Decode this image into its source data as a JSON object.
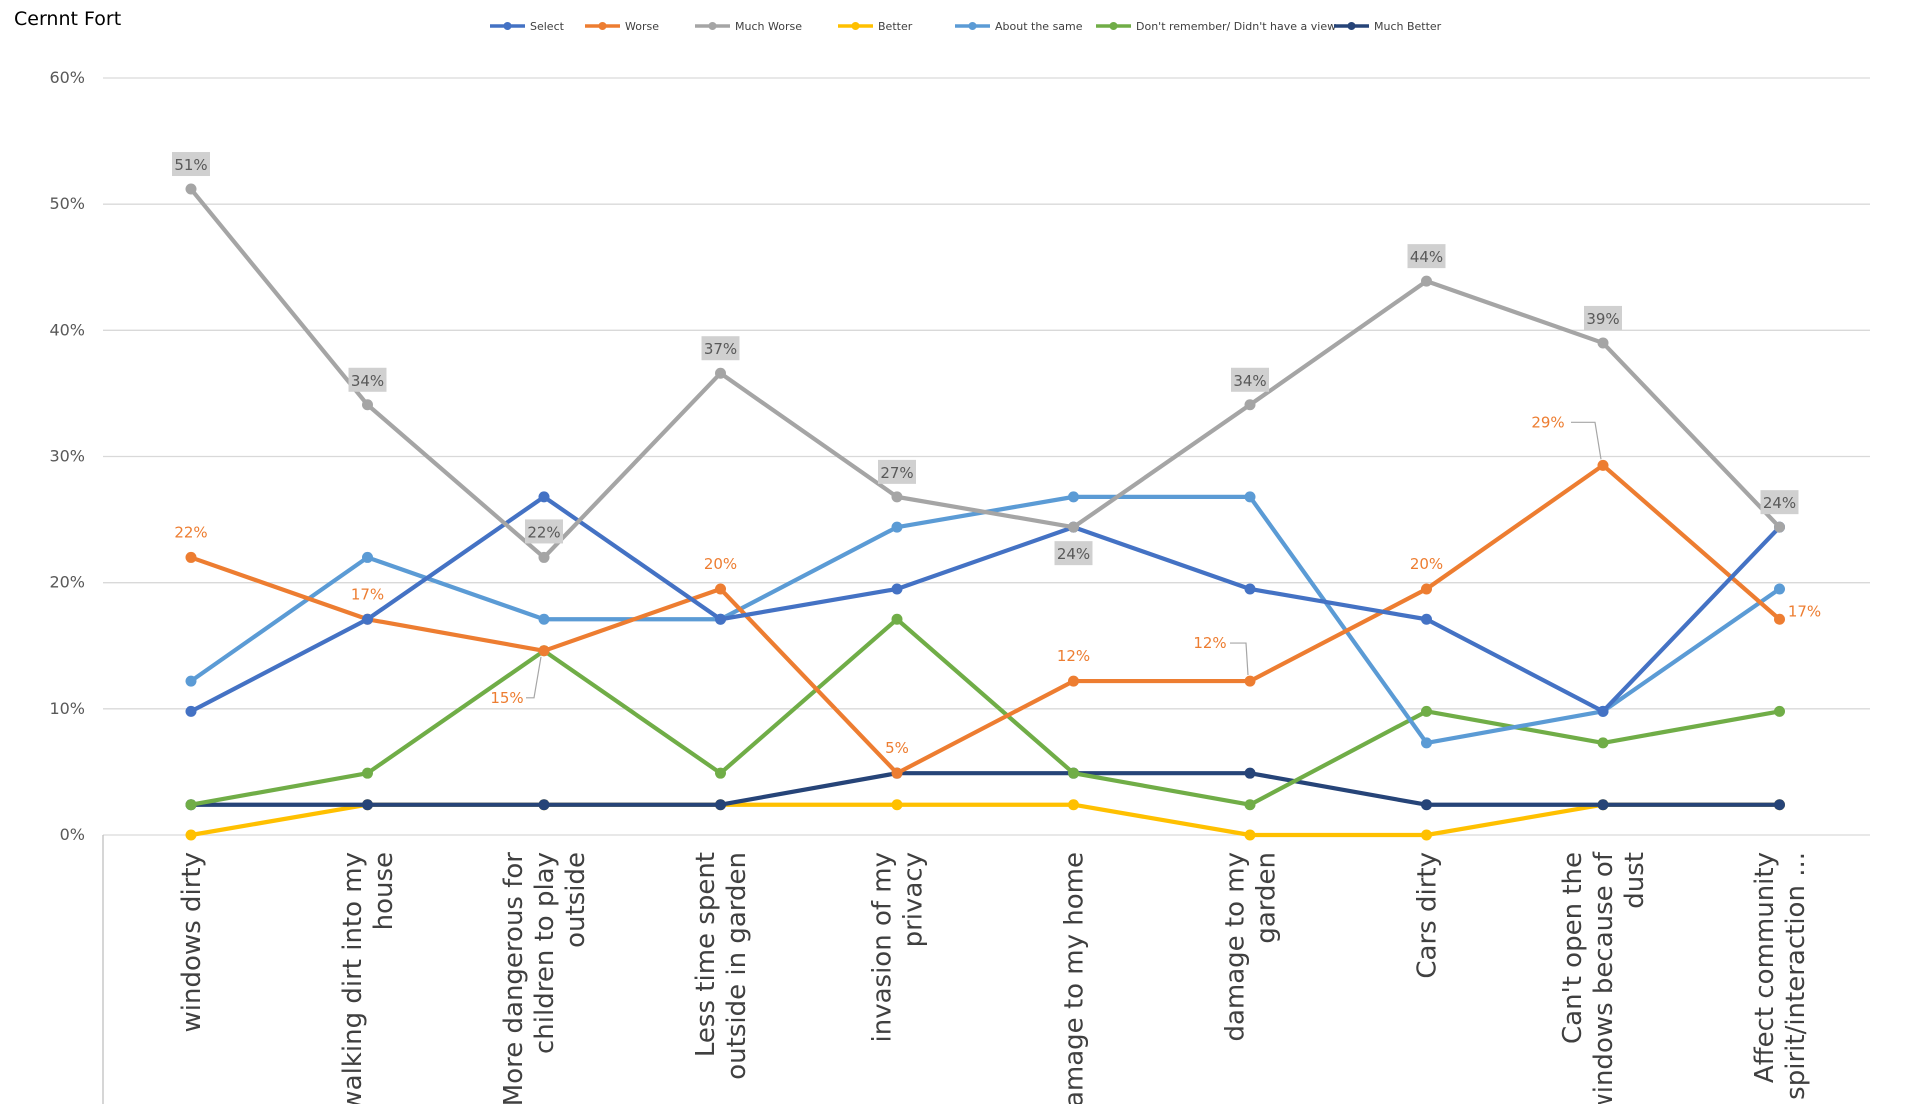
{
  "chart_data": {
    "type": "line",
    "title": "Cernnt Fort",
    "xlabel": "",
    "ylabel": "",
    "ylim": [
      0,
      60
    ],
    "y_ticks": [
      "0%",
      "10%",
      "20%",
      "30%",
      "40%",
      "50%",
      "60%"
    ],
    "y_tick_values": [
      0,
      10,
      20,
      30,
      40,
      50,
      60
    ],
    "grid": true,
    "legend_position": "top-center",
    "categories": [
      [
        "windows  dirty"
      ],
      [
        "walking dirt  into my",
        "house"
      ],
      [
        "More dangerous for",
        "children to play",
        "outside"
      ],
      [
        "Less time spent",
        "outside in garden"
      ],
      [
        "invasion of my",
        "privacy"
      ],
      [
        "damage to my home"
      ],
      [
        "damage to my",
        "garden"
      ],
      [
        "Cars dirty"
      ],
      [
        "Can't open the",
        "windows because of",
        "dust"
      ],
      [
        "Affect community",
        "spirit/interaction ..."
      ]
    ],
    "series": [
      {
        "name": "Select",
        "color": "#4472C4",
        "values": [
          9.8,
          17.1,
          26.8,
          17.1,
          19.5,
          24.4,
          19.5,
          17.1,
          9.8,
          24.4
        ],
        "labels": []
      },
      {
        "name": "Worse",
        "color": "#ED7D31",
        "values": [
          22.0,
          17.1,
          14.6,
          19.5,
          4.9,
          12.2,
          12.2,
          19.5,
          29.3,
          17.1
        ],
        "labels": [
          "22%",
          "17%",
          "15%",
          "20%",
          "5%",
          "12%",
          "12%",
          "20%",
          "29%",
          "17%"
        ]
      },
      {
        "name": "Much Worse",
        "color": "#A5A5A5",
        "values": [
          51.2,
          34.1,
          22.0,
          36.6,
          26.8,
          24.4,
          34.1,
          43.9,
          39.0,
          24.4
        ],
        "labels": [
          "51%",
          "34%",
          "22%",
          "37%",
          "27%",
          "24%",
          "34%",
          "44%",
          "39%",
          "24%"
        ]
      },
      {
        "name": "Better",
        "color": "#FFC000",
        "values": [
          0,
          2.4,
          2.4,
          2.4,
          2.4,
          2.4,
          0,
          0,
          2.4,
          2.4
        ],
        "labels": []
      },
      {
        "name": "About the same",
        "color": "#5B9BD5",
        "values": [
          12.2,
          22.0,
          17.1,
          17.1,
          24.4,
          26.8,
          26.8,
          7.3,
          9.8,
          19.5
        ],
        "labels": []
      },
      {
        "name": "Don't remember/ Didn't have a view",
        "color": "#70AD47",
        "values": [
          2.4,
          4.9,
          14.6,
          4.9,
          17.1,
          4.9,
          2.4,
          9.8,
          7.3,
          9.8
        ],
        "labels": []
      },
      {
        "name": "Much Better",
        "color": "#264478",
        "values": [
          2.4,
          2.4,
          2.4,
          2.4,
          4.9,
          4.9,
          4.9,
          2.4,
          2.4,
          2.4
        ],
        "labels": []
      }
    ]
  }
}
